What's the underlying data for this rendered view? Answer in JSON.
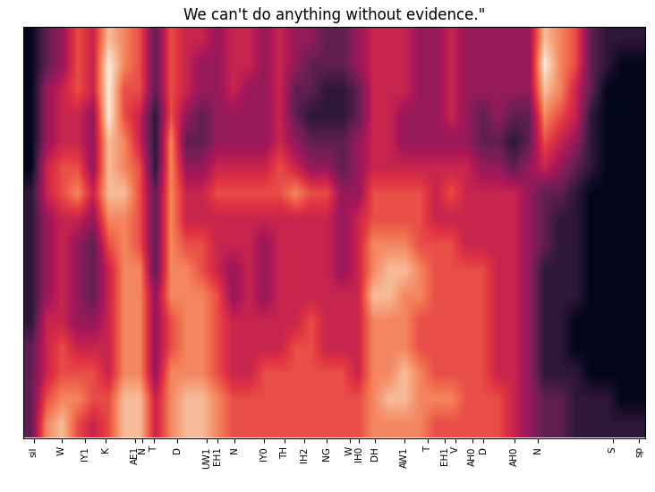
{
  "chart_data": {
    "type": "heatmap",
    "title": "We can't do anything without evidence.\"",
    "xlim": [
      0,
      40
    ],
    "xticks": [
      {
        "value": 0.7,
        "label": "sil"
      },
      {
        "value": 2.5,
        "label": "W"
      },
      {
        "value": 4.0,
        "label": "IY1"
      },
      {
        "value": 5.3,
        "label": "K"
      },
      {
        "value": 7.2,
        "label": "AE1"
      },
      {
        "value": 7.7,
        "label": "N"
      },
      {
        "value": 8.4,
        "label": "T"
      },
      {
        "value": 9.9,
        "label": "D"
      },
      {
        "value": 11.8,
        "label": "UW1"
      },
      {
        "value": 12.5,
        "label": "EH1"
      },
      {
        "value": 13.6,
        "label": "N"
      },
      {
        "value": 15.5,
        "label": "IY0"
      },
      {
        "value": 16.8,
        "label": "TH"
      },
      {
        "value": 18.1,
        "label": "IH2"
      },
      {
        "value": 19.5,
        "label": "NG"
      },
      {
        "value": 21.0,
        "label": "W"
      },
      {
        "value": 21.6,
        "label": "IH0"
      },
      {
        "value": 22.6,
        "label": "DH"
      },
      {
        "value": 24.5,
        "label": "AW1"
      },
      {
        "value": 26.0,
        "label": "T"
      },
      {
        "value": 27.1,
        "label": "EH1"
      },
      {
        "value": 27.8,
        "label": "V"
      },
      {
        "value": 28.9,
        "label": "AH0"
      },
      {
        "value": 29.6,
        "label": "D"
      },
      {
        "value": 31.6,
        "label": "AH0"
      },
      {
        "value": 33.1,
        "label": "N"
      },
      {
        "value": 37.9,
        "label": "S"
      },
      {
        "value": 39.6,
        "label": "sp"
      }
    ],
    "tick_labels": "x",
    "cells": [
      [
        1,
        3,
        4,
        6,
        5,
        8,
        7,
        6,
        3,
        6,
        5,
        5,
        4,
        5,
        5,
        4,
        5,
        4,
        4,
        3,
        3,
        4,
        5,
        5,
        5,
        4,
        4,
        5,
        4,
        4,
        4,
        4,
        4,
        8,
        7,
        6,
        3,
        2,
        2,
        2
      ],
      [
        1,
        3,
        4,
        6,
        5,
        9,
        7,
        6,
        3,
        6,
        5,
        4,
        4,
        5,
        5,
        4,
        5,
        4,
        3,
        3,
        3,
        4,
        5,
        5,
        5,
        4,
        4,
        5,
        4,
        4,
        4,
        4,
        4,
        9,
        7,
        6,
        3,
        2,
        1,
        1
      ],
      [
        1,
        4,
        5,
        6,
        5,
        9,
        6,
        6,
        3,
        6,
        5,
        4,
        4,
        5,
        4,
        4,
        5,
        3,
        3,
        2,
        2,
        3,
        5,
        5,
        5,
        4,
        4,
        5,
        4,
        4,
        4,
        4,
        4,
        8,
        7,
        5,
        3,
        1,
        1,
        1
      ],
      [
        1,
        4,
        5,
        5,
        4,
        9,
        6,
        5,
        2,
        6,
        4,
        3,
        4,
        4,
        4,
        4,
        5,
        3,
        2,
        2,
        2,
        3,
        5,
        5,
        4,
        4,
        4,
        5,
        4,
        3,
        4,
        3,
        3,
        7,
        6,
        5,
        2,
        1,
        1,
        1
      ],
      [
        1,
        4,
        5,
        5,
        4,
        8,
        7,
        5,
        2,
        7,
        3,
        3,
        4,
        4,
        4,
        4,
        5,
        4,
        3,
        3,
        3,
        4,
        5,
        5,
        4,
        4,
        4,
        4,
        4,
        3,
        3,
        2,
        3,
        6,
        5,
        4,
        2,
        1,
        1,
        1
      ],
      [
        1,
        5,
        6,
        6,
        4,
        8,
        7,
        6,
        2,
        7,
        4,
        4,
        5,
        5,
        5,
        5,
        6,
        5,
        4,
        4,
        3,
        4,
        5,
        5,
        5,
        5,
        5,
        5,
        5,
        4,
        4,
        3,
        4,
        5,
        4,
        3,
        2,
        1,
        1,
        1
      ],
      [
        2,
        5,
        6,
        7,
        5,
        8,
        8,
        6,
        3,
        7,
        5,
        5,
        6,
        6,
        6,
        6,
        6,
        7,
        6,
        6,
        4,
        4,
        6,
        6,
        6,
        6,
        5,
        6,
        5,
        5,
        5,
        5,
        4,
        3,
        3,
        2,
        1,
        1,
        1,
        1
      ],
      [
        2,
        4,
        5,
        5,
        4,
        7,
        7,
        6,
        3,
        7,
        5,
        5,
        5,
        5,
        5,
        5,
        5,
        5,
        5,
        5,
        4,
        5,
        6,
        6,
        6,
        6,
        5,
        5,
        5,
        5,
        5,
        5,
        4,
        3,
        2,
        2,
        1,
        1,
        1,
        1
      ],
      [
        2,
        4,
        5,
        4,
        3,
        6,
        7,
        6,
        3,
        7,
        6,
        6,
        5,
        5,
        5,
        4,
        5,
        5,
        5,
        5,
        4,
        5,
        7,
        7,
        7,
        6,
        6,
        6,
        5,
        5,
        5,
        5,
        4,
        3,
        2,
        2,
        1,
        1,
        1,
        1
      ],
      [
        2,
        4,
        5,
        4,
        3,
        5,
        7,
        7,
        3,
        7,
        7,
        6,
        5,
        4,
        5,
        4,
        5,
        5,
        5,
        5,
        4,
        5,
        7,
        8,
        8,
        7,
        6,
        6,
        6,
        6,
        5,
        5,
        4,
        2,
        2,
        2,
        1,
        1,
        1,
        1
      ],
      [
        2,
        4,
        5,
        4,
        3,
        5,
        7,
        7,
        4,
        7,
        7,
        7,
        6,
        4,
        5,
        4,
        5,
        5,
        5,
        5,
        5,
        5,
        8,
        8,
        7,
        7,
        6,
        6,
        6,
        6,
        5,
        5,
        4,
        2,
        2,
        2,
        1,
        1,
        1,
        1
      ],
      [
        2,
        5,
        5,
        4,
        4,
        5,
        7,
        7,
        4,
        6,
        7,
        7,
        6,
        5,
        5,
        5,
        5,
        5,
        6,
        5,
        5,
        5,
        7,
        7,
        7,
        6,
        6,
        6,
        6,
        6,
        5,
        5,
        4,
        2,
        2,
        1,
        1,
        1,
        1,
        1
      ],
      [
        3,
        5,
        6,
        5,
        5,
        5,
        7,
        7,
        4,
        6,
        7,
        7,
        6,
        5,
        5,
        5,
        5,
        6,
        6,
        5,
        5,
        5,
        7,
        7,
        7,
        6,
        6,
        6,
        6,
        6,
        5,
        5,
        4,
        2,
        2,
        1,
        1,
        1,
        1,
        1
      ],
      [
        3,
        5,
        6,
        6,
        6,
        5,
        7,
        7,
        4,
        7,
        7,
        7,
        6,
        5,
        5,
        6,
        6,
        6,
        6,
        6,
        6,
        5,
        7,
        7,
        8,
        7,
        6,
        6,
        6,
        6,
        5,
        5,
        4,
        2,
        2,
        2,
        1,
        1,
        1,
        1
      ],
      [
        3,
        6,
        7,
        7,
        6,
        6,
        8,
        8,
        5,
        7,
        8,
        8,
        7,
        6,
        6,
        6,
        6,
        6,
        6,
        6,
        6,
        6,
        7,
        8,
        8,
        7,
        7,
        7,
        6,
        6,
        6,
        5,
        4,
        3,
        3,
        2,
        2,
        2,
        1,
        1
      ],
      [
        3,
        7,
        8,
        6,
        5,
        6,
        8,
        8,
        5,
        7,
        8,
        8,
        7,
        6,
        6,
        6,
        6,
        6,
        6,
        6,
        6,
        6,
        7,
        7,
        7,
        7,
        6,
        6,
        6,
        6,
        6,
        5,
        4,
        3,
        3,
        2,
        2,
        2,
        2,
        2
      ]
    ]
  }
}
